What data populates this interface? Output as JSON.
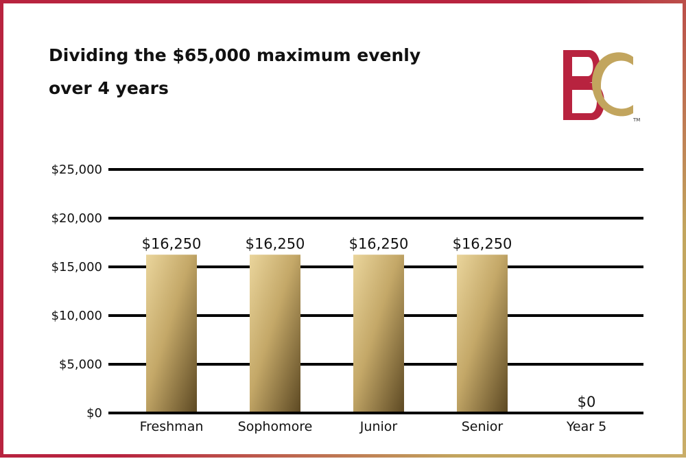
{
  "chart_data": {
    "type": "bar",
    "title": "Dividing the $65,000 maximum evenly over 4 years",
    "categories": [
      "Freshman",
      "Sophomore",
      "Junior",
      "Senior",
      "Year 5"
    ],
    "values": [
      16250,
      16250,
      16250,
      16250,
      0
    ],
    "data_labels": [
      "$16,250",
      "$16,250",
      "$16,250",
      "$16,250",
      "$0"
    ],
    "y_ticks": [
      0,
      5000,
      10000,
      15000,
      20000,
      25000
    ],
    "y_tick_labels": [
      "$0",
      "$5,000",
      "$10,000",
      "$15,000",
      "$20,000",
      "$25,000"
    ],
    "xlabel": "",
    "ylabel": "",
    "ylim": [
      0,
      25000
    ],
    "grid": true,
    "legend": "none"
  },
  "logo": {
    "text": "BC",
    "trademark": "TM",
    "colors": {
      "red": "#b8233f",
      "gold": "#c2a55e"
    }
  },
  "colors": {
    "bar_light": "#e9d49a",
    "bar_mid": "#b89a5a",
    "bar_dark": "#5f4b26",
    "gridline": "#000000",
    "border_red": "#b8233f",
    "border_gold": "#c2a55e"
  }
}
